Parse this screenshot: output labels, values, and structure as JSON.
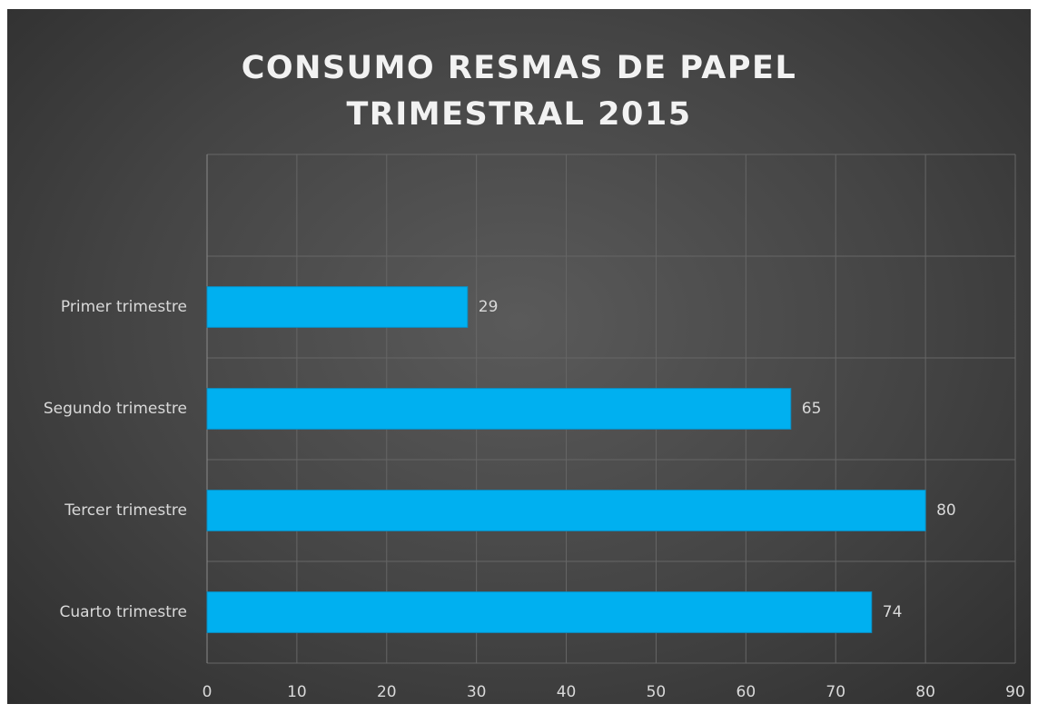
{
  "chart_data": {
    "type": "barh",
    "title": "CONSUMO RESMAS DE PAPEL TRIMESTRAL 2015",
    "categories": [
      null,
      "Primer trimestre",
      "Segundo trimestre",
      "Tercer trimestre",
      "Cuarto trimestre"
    ],
    "values": [
      null,
      29,
      65,
      80,
      74
    ],
    "color": "#00b0f0",
    "xlim": [
      0,
      90
    ],
    "xticks": [
      0,
      10,
      20,
      30,
      40,
      50,
      60,
      70,
      80,
      90
    ],
    "grid": true
  }
}
